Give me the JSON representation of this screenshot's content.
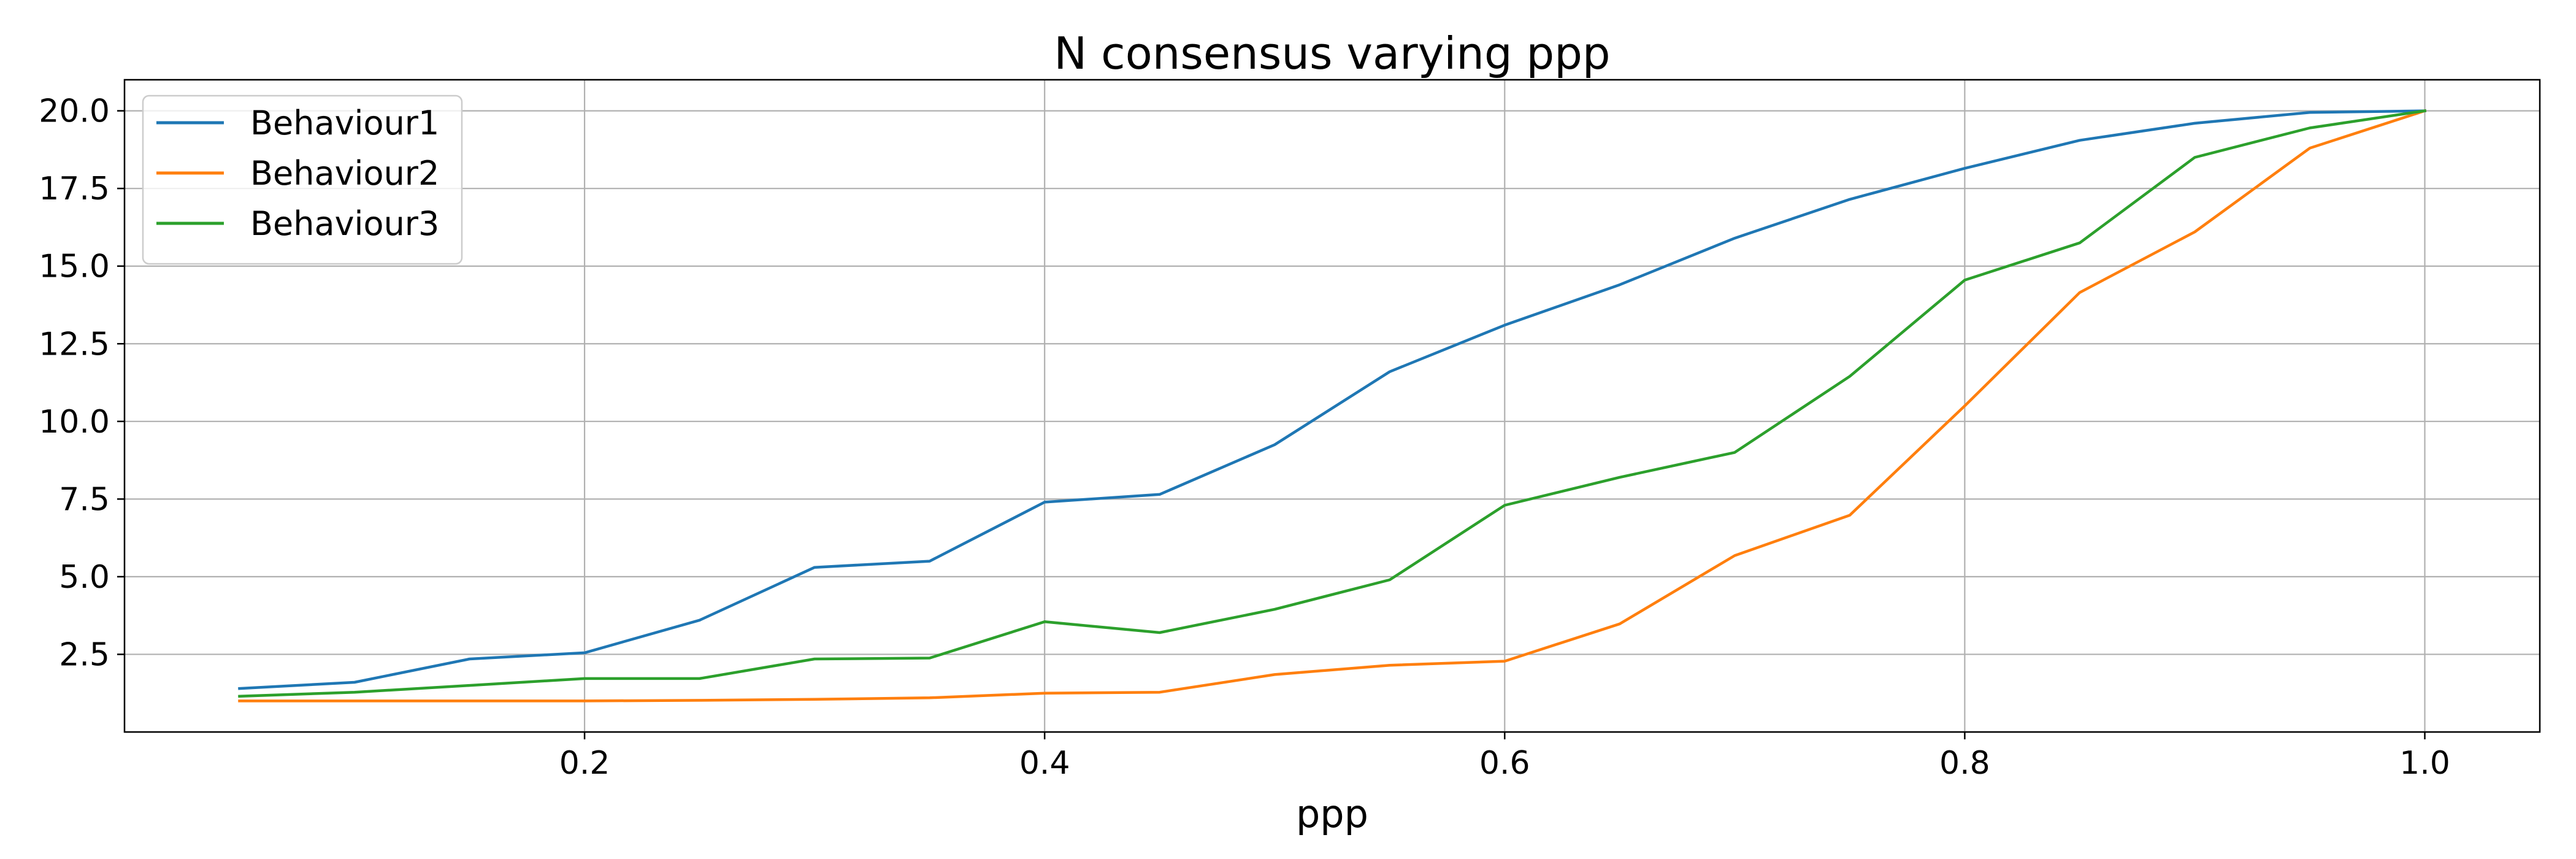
{
  "chart_data": {
    "type": "line",
    "title": "N consensus varying ppp",
    "xlabel": "ppp",
    "ylabel": "",
    "xlim": [
      0.0,
      1.05
    ],
    "ylim": [
      0.0,
      21.0
    ],
    "grid": true,
    "legend_position": "top-left",
    "xticks": [
      0.2,
      0.4,
      0.6,
      0.8,
      1.0
    ],
    "xtick_labels": [
      "0.2",
      "0.4",
      "0.6",
      "0.8",
      "1.0"
    ],
    "yticks": [
      2.5,
      5.0,
      7.5,
      10.0,
      12.5,
      15.0,
      17.5,
      20.0
    ],
    "ytick_labels": [
      "2.5",
      "5.0",
      "7.5",
      "10.0",
      "12.5",
      "15.0",
      "17.5",
      "20.0"
    ],
    "x": [
      0.05,
      0.1,
      0.15,
      0.2,
      0.25,
      0.3,
      0.35,
      0.4,
      0.45,
      0.5,
      0.55,
      0.6,
      0.65,
      0.7,
      0.75,
      0.8,
      0.85,
      0.9,
      0.95,
      1.0
    ],
    "series": [
      {
        "name": "Behaviour1",
        "color": "#1f77b4",
        "values": [
          1.4,
          1.6,
          2.35,
          2.55,
          3.6,
          5.3,
          5.5,
          7.4,
          7.65,
          9.25,
          11.6,
          13.1,
          14.4,
          15.9,
          17.15,
          18.15,
          19.05,
          19.6,
          19.95,
          20.0
        ]
      },
      {
        "name": "Behaviour2",
        "color": "#ff7f0e",
        "values": [
          1.0,
          1.0,
          1.0,
          1.0,
          1.02,
          1.05,
          1.1,
          1.25,
          1.28,
          1.85,
          2.15,
          2.28,
          3.48,
          5.68,
          6.98,
          10.5,
          14.15,
          16.1,
          18.8,
          20.0
        ]
      },
      {
        "name": "Behaviour3",
        "color": "#2ca02c",
        "values": [
          1.15,
          1.28,
          1.5,
          1.72,
          1.72,
          2.35,
          2.38,
          3.55,
          3.2,
          3.95,
          4.9,
          7.3,
          8.2,
          9.0,
          11.45,
          14.55,
          15.75,
          18.5,
          19.45,
          20.0
        ]
      }
    ]
  }
}
